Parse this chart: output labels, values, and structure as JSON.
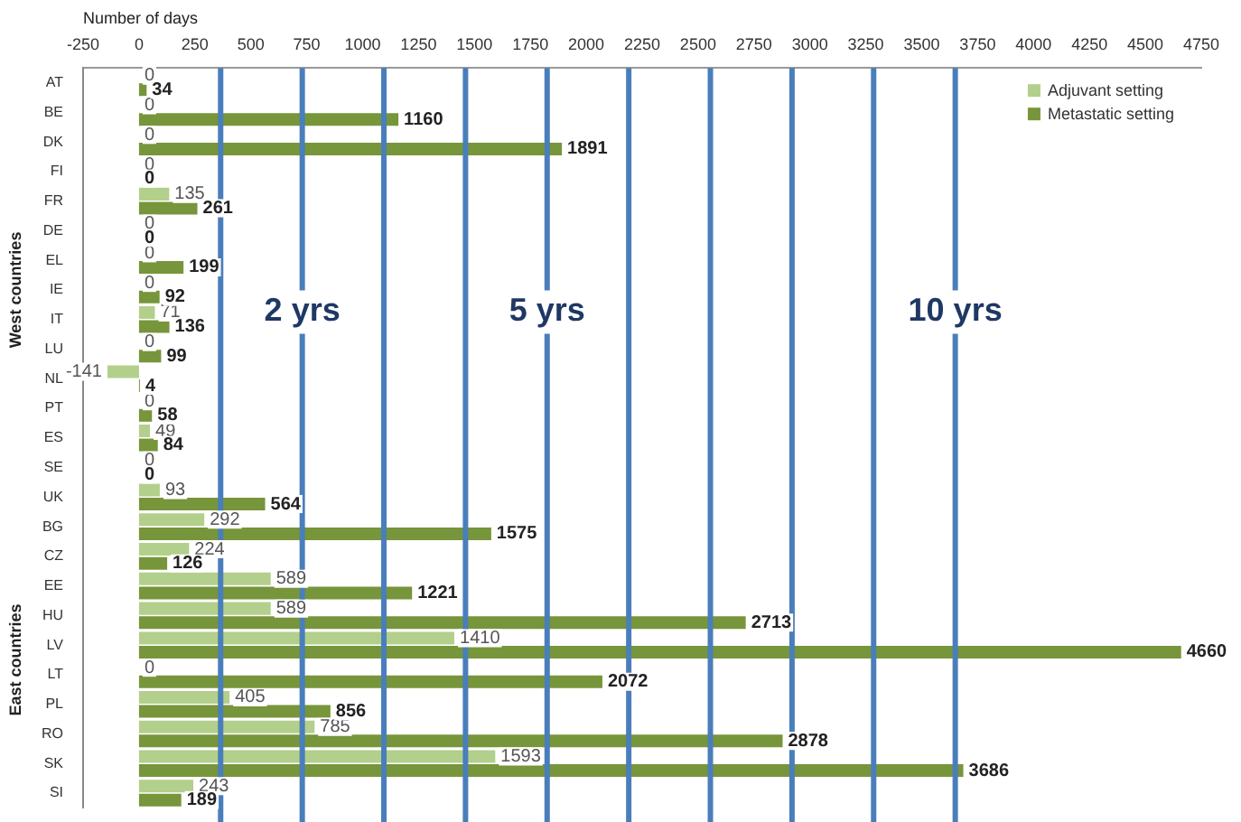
{
  "chart_data": {
    "type": "bar",
    "orientation": "horizontal",
    "xlabel": "Number of days",
    "categories": [
      "AT",
      "BE",
      "DK",
      "FI",
      "FR",
      "DE",
      "EL",
      "IE",
      "IT",
      "LU",
      "NL",
      "PT",
      "ES",
      "SE",
      "UK",
      "BG",
      "CZ",
      "EE",
      "HU",
      "LV",
      "LT",
      "PL",
      "RO",
      "SK",
      "SI"
    ],
    "series": [
      {
        "name": "Adjuvant setting",
        "color": "#b3cf8c",
        "values": [
          0,
          0,
          0,
          0,
          135,
          0,
          0,
          0,
          71,
          0,
          -141,
          0,
          49,
          0,
          93,
          292,
          224,
          589,
          589,
          1410,
          0,
          405,
          785,
          1593,
          243
        ]
      },
      {
        "name": "Metastatic setting",
        "color": "#77953a",
        "values": [
          34,
          1160,
          1891,
          0,
          261,
          0,
          199,
          92,
          136,
          99,
          4,
          58,
          84,
          0,
          564,
          1575,
          126,
          1221,
          2713,
          4660,
          2072,
          856,
          2878,
          3686,
          189
        ]
      }
    ],
    "xlim": [
      -250,
      4750
    ],
    "xticks": [
      -250,
      0,
      250,
      500,
      750,
      1000,
      1250,
      1500,
      1750,
      2000,
      2250,
      2500,
      2750,
      3000,
      3250,
      3500,
      3750,
      4000,
      4250,
      4500,
      4750
    ],
    "ref_lines": [
      {
        "axis": "x",
        "value": 365,
        "label": null,
        "color": "#4a7ebb"
      },
      {
        "axis": "x",
        "value": 730,
        "label": "2 yrs",
        "color": "#4a7ebb"
      },
      {
        "axis": "x",
        "value": 1095,
        "label": null,
        "color": "#4a7ebb"
      },
      {
        "axis": "x",
        "value": 1460,
        "label": null,
        "color": "#4a7ebb"
      },
      {
        "axis": "x",
        "value": 1825,
        "label": "5 yrs",
        "color": "#4a7ebb"
      },
      {
        "axis": "x",
        "value": 2190,
        "label": null,
        "color": "#4a7ebb"
      },
      {
        "axis": "x",
        "value": 2555,
        "label": null,
        "color": "#4a7ebb"
      },
      {
        "axis": "x",
        "value": 2920,
        "label": null,
        "color": "#4a7ebb"
      },
      {
        "axis": "x",
        "value": 3285,
        "label": null,
        "color": "#4a7ebb"
      },
      {
        "axis": "x",
        "value": 3650,
        "label": "10 yrs",
        "color": "#4a7ebb"
      }
    ],
    "annotations": [
      "West countries",
      "East countries"
    ],
    "data_labels": true,
    "legend": "top right",
    "grid": false
  }
}
